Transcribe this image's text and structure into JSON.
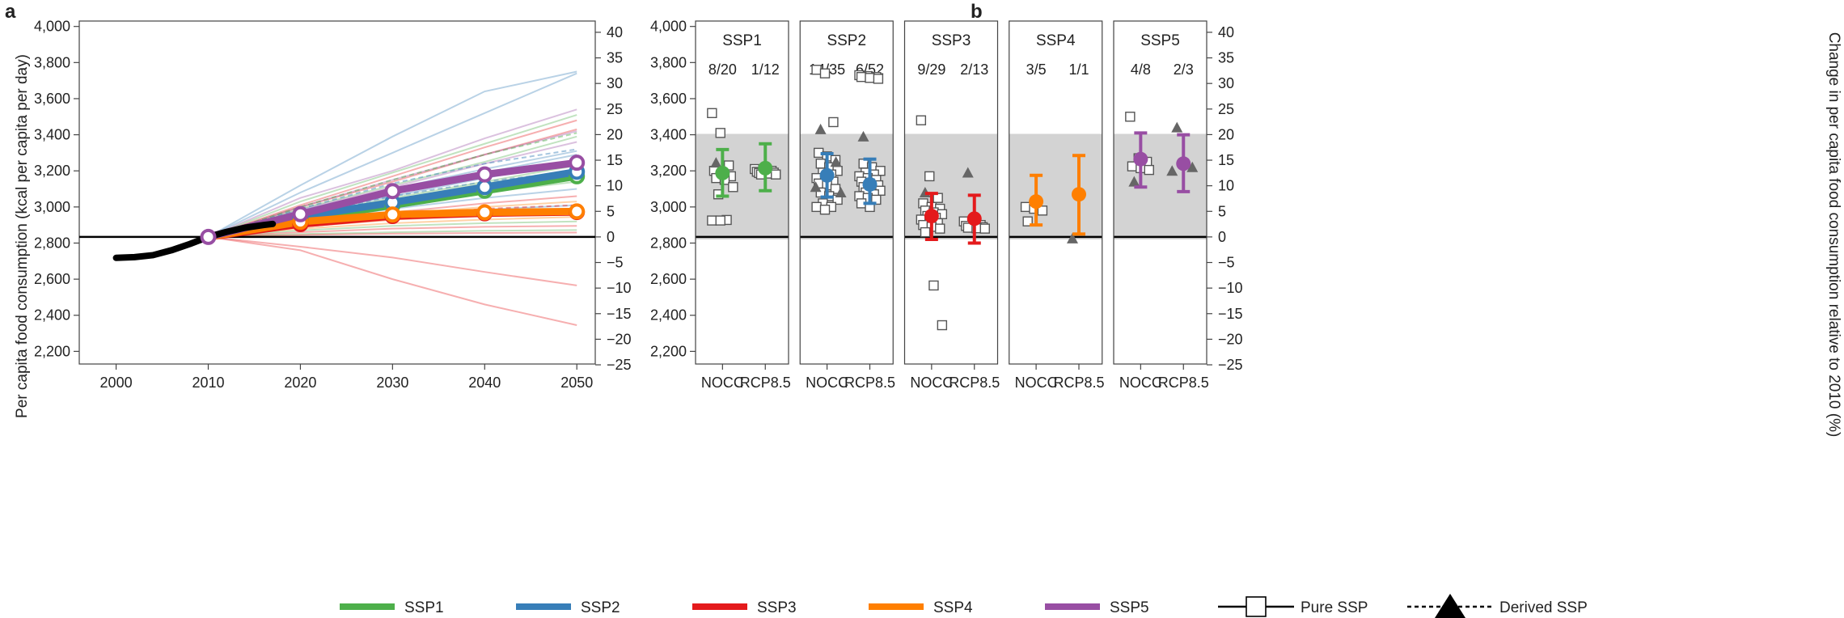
{
  "colors": {
    "SSP1": "#4daf4a",
    "SSP2": "#377eb8",
    "SSP3": "#e41a1c",
    "SSP4": "#ff7f00",
    "SSP5": "#984ea3",
    "historical": "#000000",
    "band": "#d3d3d3",
    "marker_square": "#555555",
    "marker_triangle": "#666666"
  },
  "chart_data": [
    {
      "panel": "a",
      "type": "line",
      "ylabel": "Per capita food consumption (kcal per capita per day)",
      "x_ticks": [
        "2000",
        "2010",
        "2020",
        "2030",
        "2040",
        "2050"
      ],
      "xlim": [
        1996,
        2052
      ],
      "ylim": [
        2130,
        4030
      ],
      "y_ticks": [
        "2,200",
        "2,400",
        "2,600",
        "2,800",
        "3,000",
        "3,200",
        "3,400",
        "3,600",
        "3,800",
        "4,000"
      ],
      "y2_ticks": [
        "−25",
        "−20",
        "−15",
        "−10",
        "−5",
        "0",
        "5",
        "10",
        "15",
        "20",
        "25",
        "30",
        "35",
        "40"
      ],
      "reference_2010": 2834,
      "historical": {
        "x": [
          2000,
          2002,
          2004,
          2006,
          2008,
          2010,
          2012,
          2014,
          2016,
          2017
        ],
        "y": [
          2718,
          2722,
          2733,
          2760,
          2795,
          2834,
          2862,
          2885,
          2900,
          2906
        ]
      },
      "series": [
        {
          "name": "SSP1",
          "x": [
            2010,
            2020,
            2030,
            2040,
            2050
          ],
          "y": [
            2834,
            2930,
            3010,
            3090,
            3170
          ]
        },
        {
          "name": "SSP2",
          "x": [
            2010,
            2020,
            2030,
            2040,
            2050
          ],
          "y": [
            2834,
            2945,
            3025,
            3110,
            3195
          ]
        },
        {
          "name": "SSP3",
          "x": [
            2010,
            2020,
            2030,
            2040,
            2050
          ],
          "y": [
            2834,
            2905,
            2950,
            2965,
            2972
          ]
        },
        {
          "name": "SSP4",
          "x": [
            2010,
            2020,
            2030,
            2040,
            2050
          ],
          "y": [
            2834,
            2918,
            2958,
            2970,
            2975
          ]
        },
        {
          "name": "SSP5",
          "x": [
            2010,
            2020,
            2030,
            2040,
            2050
          ],
          "y": [
            2834,
            2960,
            3088,
            3180,
            3245
          ]
        }
      ],
      "thin_lines": [
        {
          "s": "SSP2",
          "y": [
            2834,
            3120,
            3390,
            3640,
            3750
          ]
        },
        {
          "s": "SSP2",
          "y": [
            2834,
            3080,
            3300,
            3520,
            3740
          ]
        },
        {
          "s": "SSP3",
          "y": [
            2834,
            2780,
            2720,
            2640,
            2565
          ]
        },
        {
          "s": "SSP3",
          "y": [
            2834,
            2760,
            2600,
            2460,
            2345
          ]
        },
        {
          "s": "SSP5",
          "y": [
            2834,
            3050,
            3200,
            3380,
            3540
          ]
        },
        {
          "s": "SSP1",
          "y": [
            2834,
            3030,
            3190,
            3350,
            3510
          ]
        },
        {
          "s": "SSP3",
          "y": [
            2834,
            3010,
            3170,
            3330,
            3480
          ]
        },
        {
          "s": "SSP3",
          "y": [
            2834,
            3000,
            3140,
            3290,
            3430
          ]
        },
        {
          "s": "SSP1",
          "y": [
            2834,
            2990,
            3120,
            3250,
            3390
          ]
        },
        {
          "s": "SSP5",
          "y": [
            2834,
            2985,
            3110,
            3240,
            3360
          ]
        },
        {
          "s": "SSP2",
          "y": [
            2834,
            2980,
            3100,
            3210,
            3310
          ]
        },
        {
          "s": "SSP2",
          "y": [
            2834,
            2960,
            3060,
            3160,
            3250
          ]
        },
        {
          "s": "SSP1",
          "y": [
            2834,
            2950,
            3050,
            3140,
            3230
          ]
        },
        {
          "s": "SSP2",
          "y": [
            2834,
            2940,
            3030,
            3110,
            3180
          ]
        },
        {
          "s": "SSP1",
          "y": [
            2834,
            2930,
            3010,
            3080,
            3140
          ]
        },
        {
          "s": "SSP2",
          "y": [
            2834,
            2920,
            2990,
            3050,
            3100
          ]
        },
        {
          "s": "SSP3",
          "y": [
            2834,
            2910,
            2970,
            3020,
            3060
          ]
        },
        {
          "s": "SSP4",
          "y": [
            2834,
            2905,
            2960,
            3000,
            3030
          ]
        },
        {
          "s": "SSP2",
          "y": [
            2834,
            2900,
            2950,
            2985,
            3010
          ]
        },
        {
          "s": "SSP3",
          "y": [
            2834,
            2890,
            2930,
            2955,
            2970
          ]
        },
        {
          "s": "SSP4",
          "y": [
            2834,
            2880,
            2910,
            2930,
            2945
          ]
        },
        {
          "s": "SSP1",
          "y": [
            2834,
            2870,
            2895,
            2910,
            2920
          ]
        },
        {
          "s": "SSP3",
          "y": [
            2834,
            2860,
            2880,
            2890,
            2895
          ]
        },
        {
          "s": "SSP1",
          "y": [
            2834,
            2850,
            2860,
            2868,
            2872
          ]
        },
        {
          "s": "SSP3",
          "y": [
            2834,
            2845,
            2852,
            2856,
            2858
          ]
        },
        {
          "s": "SSP2",
          "y": [
            2834,
            2970,
            3080,
            3190,
            3290
          ]
        },
        {
          "s": "SSP5",
          "y": [
            2834,
            3000,
            3150,
            3290,
            3420
          ]
        },
        {
          "s": "SSP3",
          "y": [
            2834,
            2895,
            2935,
            2960,
            2985
          ]
        },
        {
          "s": "SSP1",
          "y": [
            2834,
            2940,
            3040,
            3130,
            3210
          ]
        },
        {
          "s": "SSP4",
          "y": [
            2834,
            2890,
            2930,
            2950,
            2960
          ]
        }
      ],
      "dashed_lines": [
        {
          "s": "SSP1",
          "y": [
            2834,
            3000,
            3150,
            3290,
            3410
          ]
        },
        {
          "s": "SSP2",
          "y": [
            2834,
            2990,
            3130,
            3240,
            3320
          ]
        },
        {
          "s": "SSP2",
          "y": [
            2834,
            2950,
            3060,
            3140,
            3200
          ]
        },
        {
          "s": "SSP5",
          "y": [
            2834,
            2960,
            3080,
            3170,
            3240
          ]
        },
        {
          "s": "SSP3",
          "y": [
            2834,
            2900,
            2950,
            2990,
            3010
          ]
        }
      ]
    },
    {
      "panel": "b",
      "type": "scatter",
      "y2label": "Change in per capita food consumption relative to 2010 (%)",
      "ylim": [
        2130,
        4030
      ],
      "y_ticks": [
        "2,200",
        "2,400",
        "2,600",
        "2,800",
        "3,000",
        "3,200",
        "3,400",
        "3,600",
        "3,800",
        "4,000"
      ],
      "y2_ticks": [
        "−25",
        "−20",
        "−15",
        "−10",
        "−5",
        "0",
        "5",
        "10",
        "15",
        "20",
        "25",
        "30",
        "35",
        "40"
      ],
      "band": [
        2820,
        3405
      ],
      "reference_2010": 2834,
      "panels": [
        {
          "name": "SSP1",
          "columns": [
            {
              "label": "NOCC",
              "count": "8/20",
              "mean": 3188,
              "lo": 3060,
              "hi": 3318,
              "squares": [
                3520,
                3410,
                3230,
                3200,
                3180,
                3170,
                3160,
                3150,
                3110,
                3070,
                2928,
                2925,
                2925
              ],
              "triangles": [
                3245
              ]
            },
            {
              "label": "RCP8.5",
              "count": "1/12",
              "mean": 3215,
              "lo": 3090,
              "hi": 3350,
              "squares": [
                3210,
                3205,
                3200,
                3195,
                3195,
                3190,
                3188,
                3185,
                3180,
                3180
              ],
              "triangles": []
            }
          ]
        },
        {
          "name": "SSP2",
          "columns": [
            {
              "label": "NOCC",
              "count": "14/35",
              "mean": 3175,
              "lo": 3055,
              "hi": 3295,
              "squares": [
                3760,
                3740,
                3470,
                3300,
                3280,
                3260,
                3240,
                3220,
                3200,
                3190,
                3180,
                3160,
                3150,
                3140,
                3130,
                3120,
                3100,
                3080,
                3060,
                3040,
                3020,
                3000,
                3000,
                2985
              ],
              "triangles": [
                3430,
                3250,
                3110,
                3080
              ]
            },
            {
              "label": "RCP8.5",
              "count": "6/52",
              "mean": 3125,
              "lo": 3020,
              "hi": 3265,
              "squares": [
                3730,
                3725,
                3720,
                3720,
                3715,
                3710,
                3240,
                3220,
                3200,
                3190,
                3180,
                3170,
                3160,
                3150,
                3140,
                3130,
                3120,
                3110,
                3100,
                3090,
                3080,
                3070,
                3060,
                3050,
                3040,
                3020,
                3000
              ],
              "triangles": [
                3390
              ]
            }
          ]
        },
        {
          "name": "SSP3",
          "columns": [
            {
              "label": "NOCC",
              "count": "9/29",
              "mean": 2950,
              "lo": 2820,
              "hi": 3075,
              "squares": [
                3480,
                3170,
                3050,
                3020,
                3000,
                2990,
                2980,
                2970,
                2960,
                2950,
                2940,
                2930,
                2920,
                2910,
                2900,
                2890,
                2880,
                2860,
                2565,
                2345
              ],
              "triangles": [
                3080
              ]
            },
            {
              "label": "RCP8.5",
              "count": "2/13",
              "mean": 2935,
              "lo": 2800,
              "hi": 3065,
              "squares": [
                2920,
                2910,
                2900,
                2895,
                2890,
                2888,
                2885,
                2882,
                2880
              ],
              "triangles": [
                3190
              ]
            }
          ]
        },
        {
          "name": "SSP4",
          "columns": [
            {
              "label": "NOCC",
              "count": "3/5",
              "mean": 3030,
              "lo": 2900,
              "hi": 3175,
              "squares": [
                3000,
                2990,
                2980,
                2920
              ],
              "triangles": []
            },
            {
              "label": "RCP8.5",
              "count": "1/1",
              "mean": 3070,
              "lo": 2850,
              "hi": 3285,
              "squares": [],
              "triangles": [
                2825
              ]
            }
          ]
        },
        {
          "name": "SSP5",
          "columns": [
            {
              "label": "NOCC",
              "count": "4/8",
              "mean": 3265,
              "lo": 3110,
              "hi": 3410,
              "squares": [
                3500,
                3270,
                3250,
                3225,
                3215,
                3205
              ],
              "triangles": [
                3140
              ]
            },
            {
              "label": "RCP8.5",
              "count": "2/3",
              "mean": 3240,
              "lo": 3085,
              "hi": 3400,
              "squares": [],
              "triangles": [
                3440,
                3220,
                3200
              ]
            }
          ]
        }
      ]
    }
  ],
  "panel_labels": {
    "a": "a",
    "b": "b"
  },
  "legend": {
    "items": [
      {
        "label": "SSP1",
        "color_key": "SSP1"
      },
      {
        "label": "SSP2",
        "color_key": "SSP2"
      },
      {
        "label": "SSP3",
        "color_key": "SSP3"
      },
      {
        "label": "SSP4",
        "color_key": "SSP4"
      },
      {
        "label": "SSP5",
        "color_key": "SSP5"
      }
    ],
    "pure_label": "Pure SSP",
    "derived_label": "Derived SSP"
  }
}
